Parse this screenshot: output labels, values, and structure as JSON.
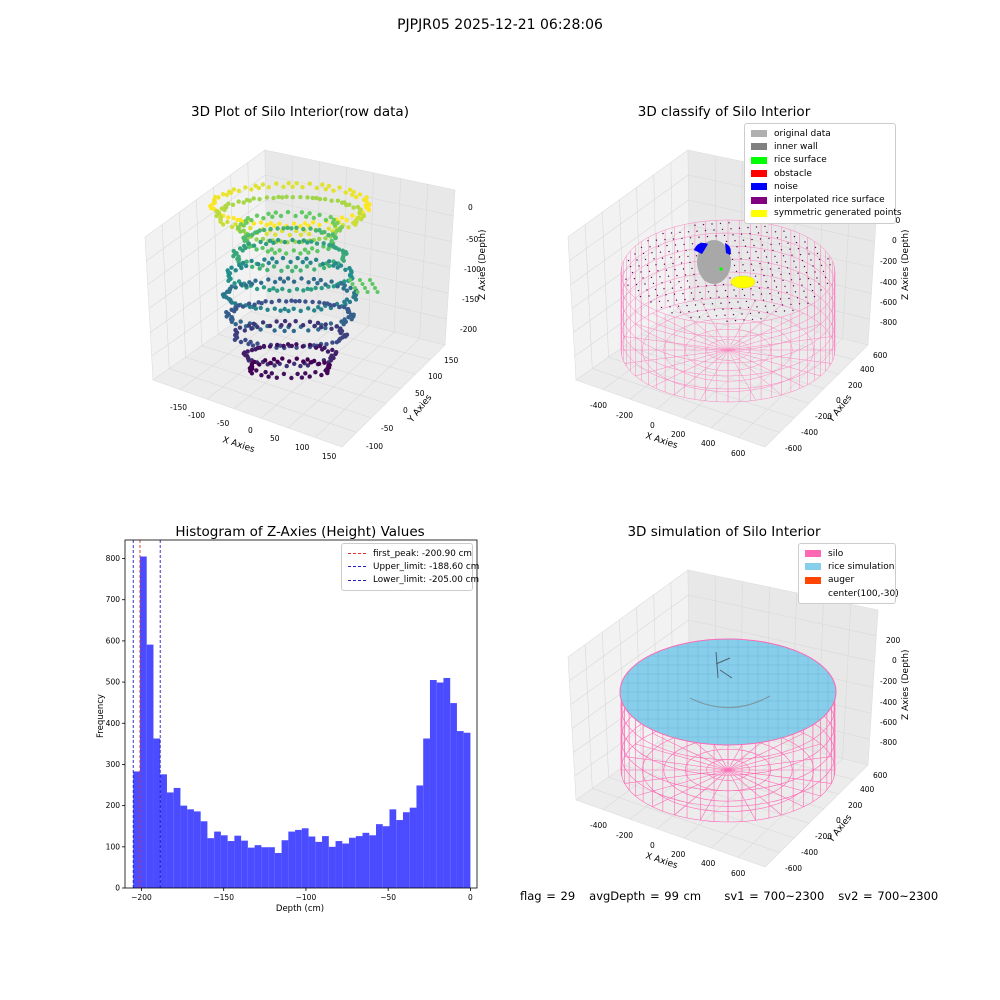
{
  "suptitle": "PJPJR05 2025-12-21 06:28:06",
  "panels": {
    "raw": {
      "title": "3D Plot of Silo Interior(row data)",
      "xlabel": "X Axies",
      "ylabel": "Y Axies",
      "zlabel": "Z Axies (Depth)",
      "xticks": [
        "-150",
        "-100",
        "-50",
        "0",
        "50",
        "100",
        "150"
      ],
      "yticks": [
        "-100",
        "-50",
        "0",
        "50",
        "100",
        "150"
      ],
      "zticks": [
        "0",
        "-50",
        "-100",
        "-150",
        "-200"
      ]
    },
    "classify": {
      "title": "3D classify of Silo Interior",
      "xlabel": "X Axies",
      "ylabel": "Y Axies",
      "zlabel": "Z Axies (Depth)",
      "xticks": [
        "-400",
        "-200",
        "0",
        "200",
        "400",
        "600"
      ],
      "yticks": [
        "-600",
        "-400",
        "-200",
        "0",
        "200",
        "400",
        "600"
      ],
      "zticks": [
        "200",
        "0",
        "-200",
        "-400",
        "-600",
        "-800"
      ],
      "legend": [
        {
          "label": "original data",
          "color": "#b0b0b0"
        },
        {
          "label": "inner wall",
          "color": "#808080"
        },
        {
          "label": "rice surface",
          "color": "#00ff00"
        },
        {
          "label": "obstacle",
          "color": "#ff0000"
        },
        {
          "label": "noise",
          "color": "#0000ff"
        },
        {
          "label": "interpolated rice surface",
          "color": "#800080"
        },
        {
          "label": "symmetric generated points",
          "color": "#ffff00"
        }
      ]
    },
    "simulation": {
      "title": "3D simulation of Silo Interior",
      "xlabel": "X Axies",
      "ylabel": "Y Axies",
      "zlabel": "Z Axies (Depth)",
      "xticks": [
        "-400",
        "-200",
        "0",
        "200",
        "400",
        "600"
      ],
      "yticks": [
        "-600",
        "-400",
        "-200",
        "0",
        "200",
        "400",
        "600"
      ],
      "zticks": [
        "200",
        "0",
        "-200",
        "-400",
        "-600",
        "-800"
      ],
      "legend": [
        {
          "label": "silo",
          "color": "#ff69b4"
        },
        {
          "label": "rice simulation",
          "color": "#87ceeb"
        },
        {
          "label": "auger",
          "color": "#ff4500"
        },
        {
          "label": "center(100,-30)",
          "color": ""
        }
      ]
    }
  },
  "chart_data": {
    "type": "bar",
    "title": "Histogram of Z-Axies (Height) Values",
    "xlabel": "Depth (cm)",
    "ylabel": "Frequency",
    "xlim": [
      -210,
      4
    ],
    "ylim": [
      0,
      845
    ],
    "xticks": [
      -200,
      -150,
      -100,
      -50,
      0
    ],
    "yticks": [
      0,
      100,
      200,
      300,
      400,
      500,
      600,
      700,
      800
    ],
    "bin_start": -205,
    "bin_width": 4.1,
    "values": [
      283,
      805,
      591,
      363,
      276,
      232,
      243,
      200,
      191,
      186,
      162,
      121,
      137,
      128,
      114,
      127,
      115,
      98,
      104,
      99,
      99,
      85,
      116,
      137,
      141,
      145,
      125,
      112,
      126,
      100,
      114,
      108,
      122,
      126,
      134,
      128,
      155,
      150,
      191,
      165,
      184,
      195,
      249,
      363,
      505,
      499,
      510,
      449,
      381,
      377
    ],
    "bar_color": "#4b4bff",
    "lines": [
      {
        "label": "first_peak: -200.90 cm",
        "x": -200.9,
        "color": "#e03030"
      },
      {
        "label": "Upper_limit: -188.60 cm",
        "x": -188.6,
        "color": "#2020c0"
      },
      {
        "label": "Lower_limit: -205.00 cm",
        "x": -205.0,
        "color": "#2020c0"
      }
    ],
    "legend_position": "upper right"
  },
  "status": {
    "flag": "flag = 29",
    "avg_depth": "avgDepth = 99 cm",
    "sv1": "sv1 = 700~2300",
    "sv2": "sv2 = 700~2300"
  }
}
